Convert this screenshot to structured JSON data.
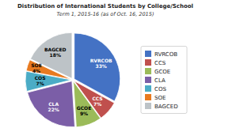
{
  "chart_data": {
    "type": "pie",
    "title": "Distribution of International Students by College/School",
    "subtitle": "Term 1, 2015-16 (as of  Oct. 16, 2015)",
    "categories": [
      "RVRCOB",
      "CCS",
      "GCOE",
      "CLA",
      "COS",
      "SOE",
      "BAGCED"
    ],
    "values": [
      33,
      7,
      9,
      22,
      7,
      4,
      18
    ],
    "value_labels": [
      "33%",
      "7%",
      "9%",
      "22%",
      "7%",
      "4%",
      "18%"
    ],
    "colors": [
      "#4472C4",
      "#C0504D",
      "#9BBB59",
      "#7B5EA7",
      "#4BACC6",
      "#E87A20",
      "#BDC3C7"
    ],
    "data_labels": true,
    "legend": "right"
  }
}
